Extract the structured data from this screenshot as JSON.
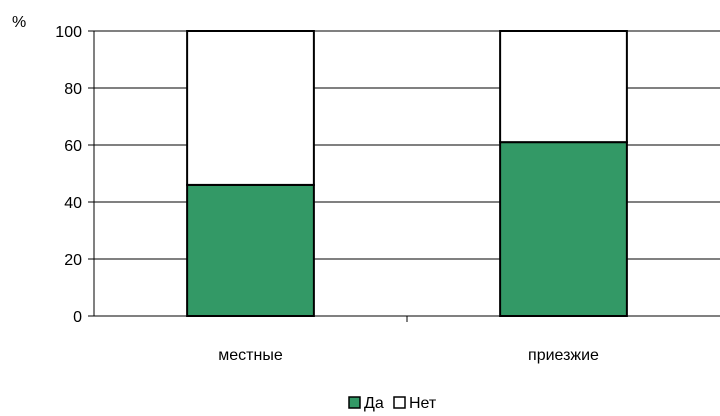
{
  "chart_data": {
    "type": "bar",
    "stacked": true,
    "y_unit": "%",
    "categories": [
      "местные",
      "приезжие"
    ],
    "series": [
      {
        "name": "Да",
        "values": [
          46,
          61
        ],
        "color": "#339966"
      },
      {
        "name": "Нет",
        "values": [
          54,
          39
        ],
        "color": "#ffffff"
      }
    ],
    "ylim": [
      0,
      100
    ],
    "yticks": [
      0,
      20,
      40,
      60,
      80,
      100
    ],
    "grid": true,
    "legend_position": "bottom"
  }
}
